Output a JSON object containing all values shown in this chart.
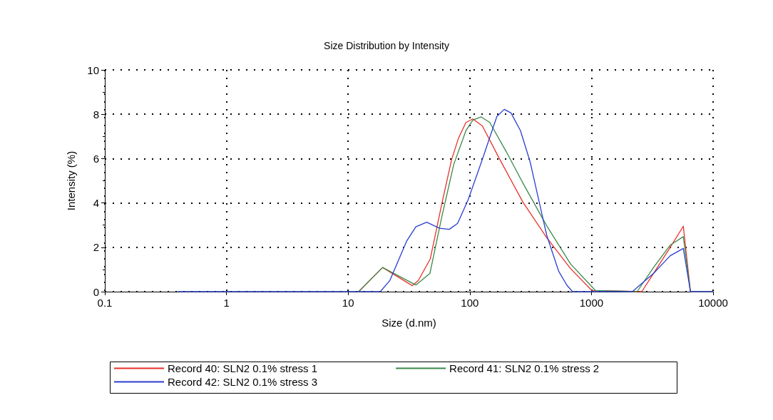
{
  "chart_data": {
    "type": "line",
    "title": "Size Distribution by Intensity",
    "xlabel": "Size (d.nm)",
    "ylabel": "Intensity (%)",
    "log": "x",
    "xlim": [
      0.1,
      10000
    ],
    "xticks": [
      0.1,
      1,
      10,
      100,
      1000,
      10000
    ],
    "ylim": [
      0,
      10
    ],
    "yticks": [
      0,
      2,
      4,
      6,
      8,
      10
    ],
    "grid": true,
    "legend": "bottom",
    "marker": "none",
    "line_style": "solid",
    "series": [
      {
        "name": "Record 40: SLN2 0.1% stress 1",
        "color": "#e8302a",
        "x": [
          12.2,
          19.2,
          33.7,
          37.7,
          47.3,
          59.3,
          71,
          81,
          93,
          106,
          127,
          175,
          273,
          429,
          673,
          1009,
          2596,
          3245,
          4443,
          5690,
          6516,
          10000
        ],
        "values": [
          0,
          1.09,
          0.27,
          0.5,
          1.47,
          4.04,
          5.97,
          6.94,
          7.63,
          7.79,
          7.47,
          6.0,
          4.04,
          2.43,
          1.04,
          0.05,
          0,
          0.83,
          2.0,
          2.95,
          0,
          0
        ]
      },
      {
        "name": "Record 41: SLN2 0.1% stress 2",
        "color": "#3a8a4a",
        "x": [
          12.2,
          19.2,
          36,
          47,
          59,
          74,
          93,
          106,
          124,
          146,
          200,
          273,
          429,
          673,
          1080,
          2372,
          3245,
          4443,
          5690,
          6516,
          10000
        ],
        "values": [
          0,
          1.09,
          0.3,
          0.82,
          3.4,
          5.76,
          7.26,
          7.74,
          7.88,
          7.63,
          6.3,
          4.9,
          2.97,
          1.25,
          0.05,
          0,
          1.1,
          2.1,
          2.48,
          0,
          0
        ]
      },
      {
        "name": "Record 42: SLN2 0.1% stress 3",
        "color": "#2a3fd0",
        "x": [
          0.4,
          10,
          18.4,
          22,
          30.2,
          36,
          44.2,
          56.6,
          67.8,
          79.4,
          97,
          127,
          167,
          192,
          218,
          261,
          313,
          429,
          537,
          628,
          700,
          2168,
          3245,
          4443,
          5690,
          6516,
          10000
        ],
        "values": [
          0,
          0,
          0,
          0.5,
          2.27,
          2.92,
          3.13,
          2.86,
          2.81,
          3.08,
          4.15,
          5.97,
          7.9,
          8.22,
          8.06,
          7.26,
          5.86,
          2.54,
          0.93,
          0.29,
          0,
          0,
          0.83,
          1.62,
          1.95,
          0,
          0
        ]
      }
    ]
  }
}
